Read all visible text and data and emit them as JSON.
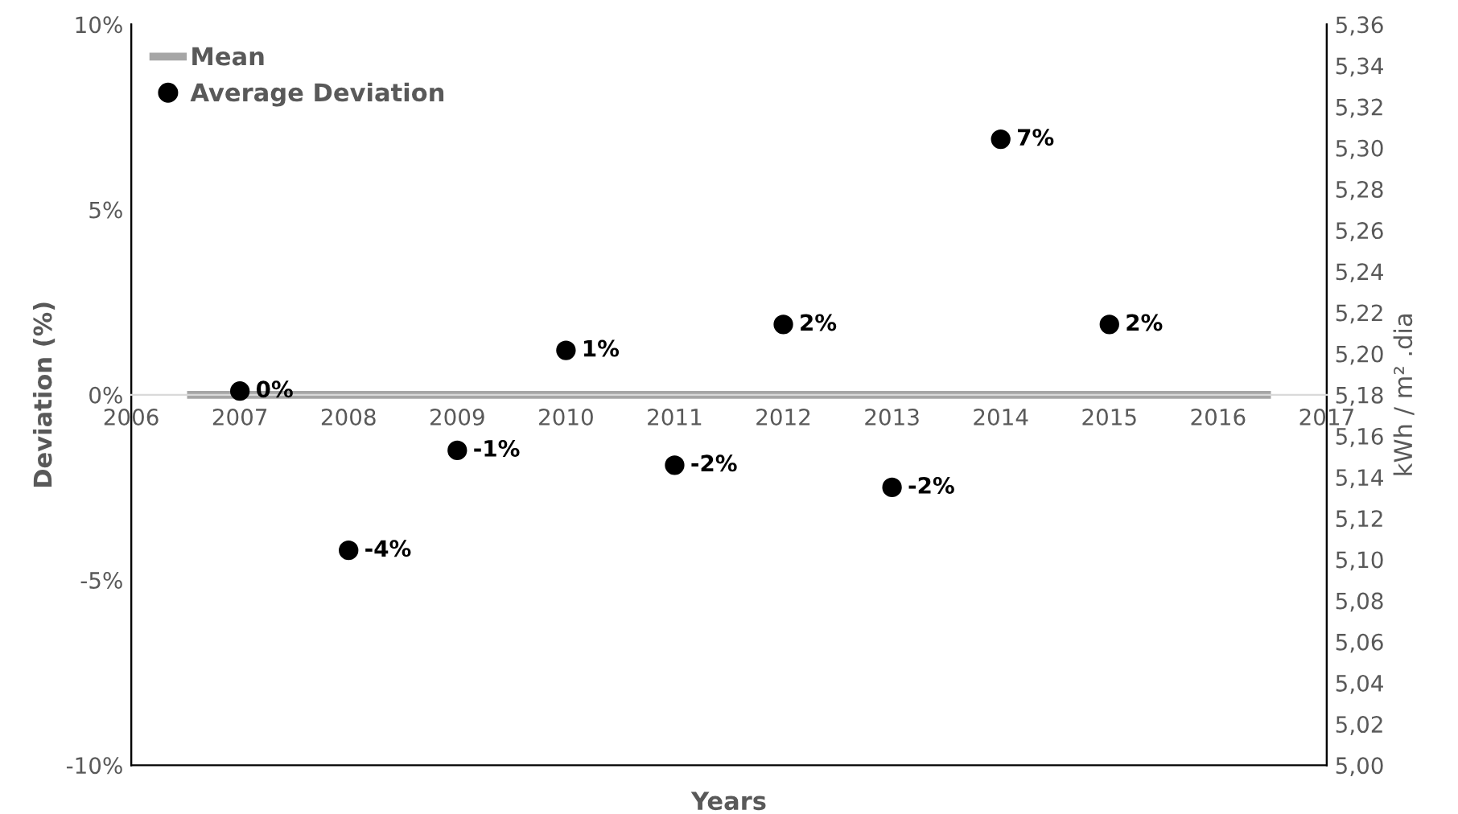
{
  "chart_data": {
    "type": "scatter",
    "xlabel": "Years",
    "ylabel": "Deviation (%)",
    "y2label": "kWh / m² .dia",
    "xlim": [
      2006,
      2017
    ],
    "xticks": [
      2006,
      2007,
      2008,
      2009,
      2010,
      2011,
      2012,
      2013,
      2014,
      2015,
      2016,
      2017
    ],
    "ylim": [
      -10,
      10
    ],
    "yticks": [
      {
        "value": -10,
        "label": "-10%"
      },
      {
        "value": -5,
        "label": "-5%"
      },
      {
        "value": 0,
        "label": "0%"
      },
      {
        "value": 5,
        "label": "5%"
      },
      {
        "value": 10,
        "label": "10%"
      }
    ],
    "y2lim": [
      5.0,
      5.36
    ],
    "y2ticks": [
      {
        "value": 5.0,
        "label": "5,00"
      },
      {
        "value": 5.02,
        "label": "5,02"
      },
      {
        "value": 5.04,
        "label": "5,04"
      },
      {
        "value": 5.06,
        "label": "5,06"
      },
      {
        "value": 5.08,
        "label": "5,08"
      },
      {
        "value": 5.1,
        "label": "5,10"
      },
      {
        "value": 5.12,
        "label": "5,12"
      },
      {
        "value": 5.14,
        "label": "5,14"
      },
      {
        "value": 5.16,
        "label": "5,16"
      },
      {
        "value": 5.18,
        "label": "5,18"
      },
      {
        "value": 5.2,
        "label": "5,20"
      },
      {
        "value": 5.22,
        "label": "5,22"
      },
      {
        "value": 5.24,
        "label": "5,24"
      },
      {
        "value": 5.26,
        "label": "5,26"
      },
      {
        "value": 5.28,
        "label": "5,28"
      },
      {
        "value": 5.3,
        "label": "5,30"
      },
      {
        "value": 5.32,
        "label": "5,32"
      },
      {
        "value": 5.34,
        "label": "5,34"
      },
      {
        "value": 5.36,
        "label": "5,36"
      }
    ],
    "series": [
      {
        "name": "Mean",
        "type": "line",
        "axis": "y2",
        "color": "#a6a6a6",
        "x": [
          2006.55,
          2016.45
        ],
        "values": [
          5.18,
          5.18
        ],
        "marker": "none"
      },
      {
        "name": "Average Deviation",
        "color": "#000000",
        "marker": "circle",
        "x": [
          2007,
          2008,
          2009,
          2010,
          2011,
          2012,
          2013,
          2014,
          2015
        ],
        "values": [
          0.1,
          -4.2,
          -1.5,
          1.2,
          -1.9,
          1.9,
          -2.5,
          6.9,
          1.9
        ],
        "value_labels": [
          "0%",
          "-4%",
          "-1%",
          "1%",
          "-2%",
          "2%",
          "-2%",
          "7%",
          "2%"
        ]
      }
    ],
    "grid": false,
    "legend": "top left"
  }
}
